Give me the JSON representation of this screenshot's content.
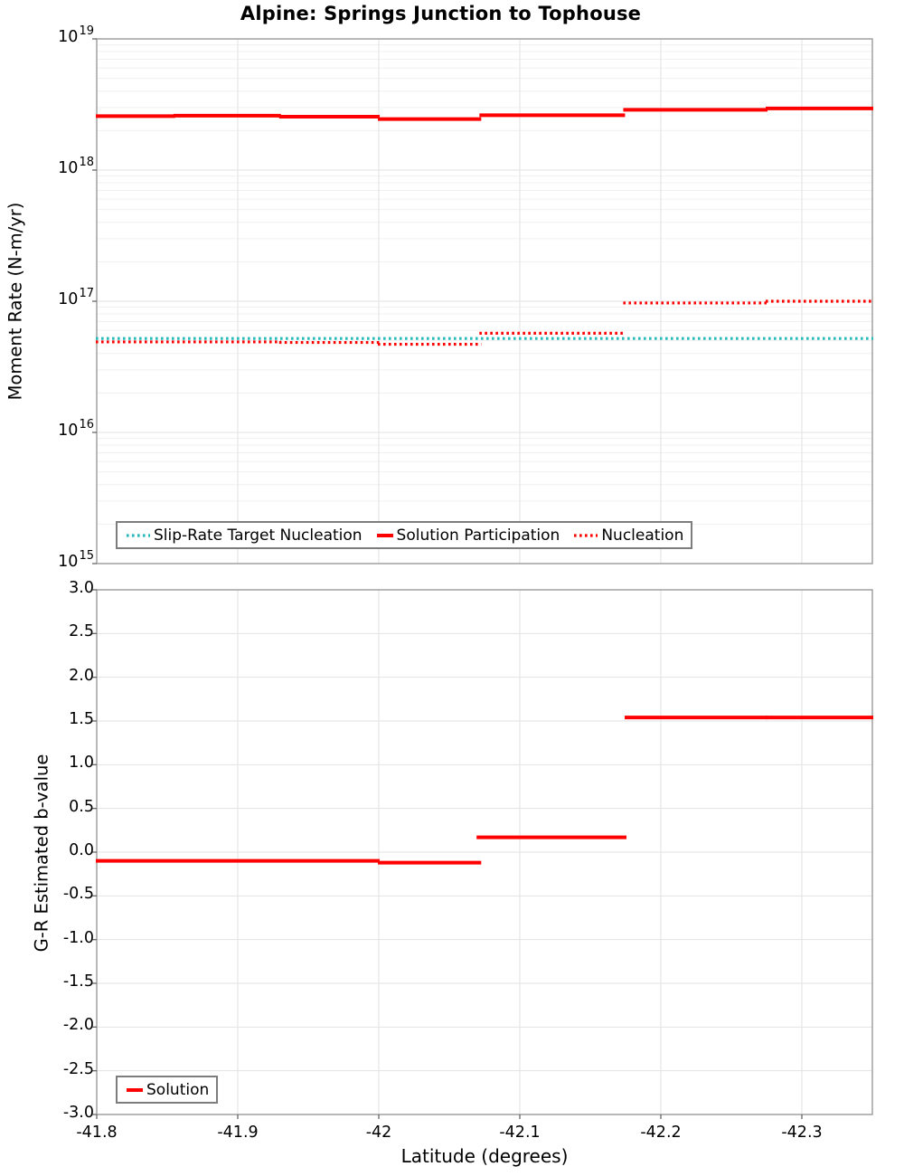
{
  "title": "Alpine: Springs Junction to Tophouse",
  "colors": {
    "red": "#FF0000",
    "teal": "#28B9B9",
    "grid_major": "#E2E2E2",
    "grid_minor": "#F0F0F0",
    "spine": "#9A9A9A",
    "tick": "#666666",
    "legend_border": "#7D7D7D",
    "text": "#000000",
    "background": "#FFFFFF"
  },
  "chart_data": [
    {
      "type": "line",
      "title": "Alpine: Springs Junction to Tophouse",
      "xlabel": "Latitude (degrees)",
      "ylabel": "Moment Rate (N-m/yr)",
      "x_range": [
        -41.8,
        -42.35
      ],
      "x_ticks": [
        -41.8,
        -41.9,
        -42.0,
        -42.1,
        -42.2,
        -42.3
      ],
      "x_tick_labels": [
        "-41.8",
        "-41.9",
        "-42",
        "-42.1",
        "-42.2",
        "-42.3"
      ],
      "y_scale": "log",
      "y_exp_range": [
        15,
        19
      ],
      "y_ticks_exp": [
        19,
        18,
        17,
        16,
        15
      ],
      "y_tick_labels": [
        "10^19",
        "10^18",
        "10^17",
        "10^16",
        "10^15"
      ],
      "grid": true,
      "legend_position": "bottom-left",
      "series": [
        {
          "name": "Slip-Rate Target Nucleation",
          "style": "dotted",
          "color": "#28B9B9",
          "segments": [
            {
              "from": -41.8,
              "to": -42.35,
              "value": 5.2e+16
            }
          ]
        },
        {
          "name": "Solution Participation",
          "style": "solid",
          "color": "#FF0000",
          "segments": [
            {
              "from": -41.8,
              "to": -41.855,
              "value": 2.58e+18
            },
            {
              "from": -41.855,
              "to": -41.93,
              "value": 2.6e+18
            },
            {
              "from": -41.93,
              "to": -42.0,
              "value": 2.55e+18
            },
            {
              "from": -42.0,
              "to": -42.072,
              "value": 2.45e+18
            },
            {
              "from": -42.072,
              "to": -42.174,
              "value": 2.62e+18
            },
            {
              "from": -42.174,
              "to": -42.275,
              "value": 2.88e+18
            },
            {
              "from": -42.275,
              "to": -42.35,
              "value": 2.95e+18
            }
          ]
        },
        {
          "name": "Nucleation",
          "style": "dotted",
          "color": "#FF0000",
          "segments": [
            {
              "from": -41.8,
              "to": -41.93,
              "value": 4.9e+16
            },
            {
              "from": -41.93,
              "to": -42.0,
              "value": 4.85e+16
            },
            {
              "from": -42.0,
              "to": -42.072,
              "value": 4.7e+16
            },
            {
              "from": -42.072,
              "to": -42.174,
              "value": 5.7e+16
            },
            {
              "from": -42.174,
              "to": -42.275,
              "value": 9.7e+16
            },
            {
              "from": -42.275,
              "to": -42.35,
              "value": 1e+17
            }
          ]
        }
      ]
    },
    {
      "type": "line",
      "xlabel": "Latitude (degrees)",
      "ylabel": "G-R Estimated b-value",
      "x_range": [
        -41.8,
        -42.35
      ],
      "x_ticks": [
        -41.8,
        -41.9,
        -42.0,
        -42.1,
        -42.2,
        -42.3
      ],
      "x_tick_labels": [
        "-41.8",
        "-41.9",
        "-42",
        "-42.1",
        "-42.2",
        "-42.3"
      ],
      "y_scale": "linear",
      "y_range": [
        -3.0,
        3.0
      ],
      "y_ticks": [
        3.0,
        2.5,
        2.0,
        1.5,
        1.0,
        0.5,
        0.0,
        -0.5,
        -1.0,
        -1.5,
        -2.0,
        -2.5,
        -3.0
      ],
      "y_tick_labels": [
        "3.0",
        "2.5",
        "2.0",
        "1.5",
        "1.0",
        "0.5",
        "0.0",
        "-0.5",
        "-1.0",
        "-1.5",
        "-2.0",
        "-2.5",
        "-3.0"
      ],
      "grid": true,
      "legend_position": "bottom-left",
      "series": [
        {
          "name": "Solution",
          "style": "solid",
          "color": "#FF0000",
          "segments": [
            {
              "from": -41.8,
              "to": -42.0,
              "value": -0.1
            },
            {
              "from": -42.0,
              "to": -42.072,
              "value": -0.12
            },
            {
              "from": -42.07,
              "to": -42.175,
              "value": 0.17
            },
            {
              "from": -42.175,
              "to": -42.275,
              "value": 1.54
            },
            {
              "from": -42.275,
              "to": -42.35,
              "value": 1.54
            }
          ]
        }
      ]
    }
  ]
}
